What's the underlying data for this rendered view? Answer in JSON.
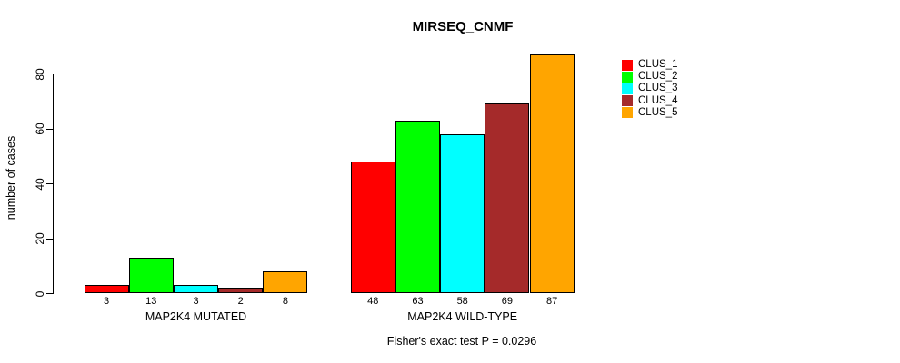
{
  "chart_data": {
    "type": "bar",
    "title": "MIRSEQ_CNMF",
    "ylabel": "number of cases",
    "xlabel": "",
    "ylim": [
      0,
      88
    ],
    "yticks": [
      0,
      20,
      40,
      60,
      80
    ],
    "grid": false,
    "bar_value_labels": true,
    "legend_position": "right-outside",
    "categories": [
      "MAP2K4 MUTATED",
      "MAP2K4 WILD-TYPE"
    ],
    "series": [
      {
        "name": "CLUS_1",
        "color": "#FF0000",
        "values": [
          3,
          48
        ]
      },
      {
        "name": "CLUS_2",
        "color": "#00FF00",
        "values": [
          13,
          63
        ]
      },
      {
        "name": "CLUS_3",
        "color": "#00FFFF",
        "values": [
          3,
          58
        ]
      },
      {
        "name": "CLUS_4",
        "color": "#A52A2A",
        "values": [
          2,
          69
        ]
      },
      {
        "name": "CLUS_5",
        "color": "#FFA500",
        "values": [
          8,
          87
        ]
      }
    ],
    "annotation": "Fisher's exact test P = 0.0296"
  }
}
